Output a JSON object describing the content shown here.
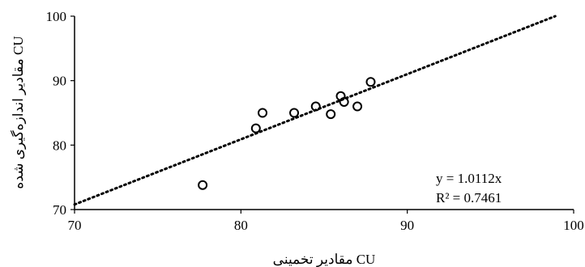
{
  "chart_data": {
    "type": "scatter",
    "xlabel": "مقادیر تخمینی CU",
    "ylabel": "مقادیر اندازه‌گیری شده CU",
    "xlim": [
      70,
      100
    ],
    "ylim": [
      70,
      100
    ],
    "x_ticks": [
      "70",
      "80",
      "90",
      "100"
    ],
    "y_ticks": [
      "70",
      "80",
      "90",
      "100"
    ],
    "grid": false,
    "marker": "hollow-circle",
    "trendline": {
      "style": "dotted",
      "slope": 1.0112,
      "intercept": 0
    },
    "equation_label": "y = 1.0112x",
    "r2_label": "R² = 0.7461",
    "series": [
      {
        "points": [
          {
            "x": 77.7,
            "y": 73.8
          },
          {
            "x": 80.9,
            "y": 82.6
          },
          {
            "x": 81.3,
            "y": 85.0
          },
          {
            "x": 83.2,
            "y": 85.0
          },
          {
            "x": 84.5,
            "y": 86.0
          },
          {
            "x": 85.4,
            "y": 84.8
          },
          {
            "x": 86.0,
            "y": 87.6
          },
          {
            "x": 86.2,
            "y": 86.7
          },
          {
            "x": 87.0,
            "y": 86.0
          },
          {
            "x": 87.8,
            "y": 89.8
          }
        ]
      }
    ]
  }
}
